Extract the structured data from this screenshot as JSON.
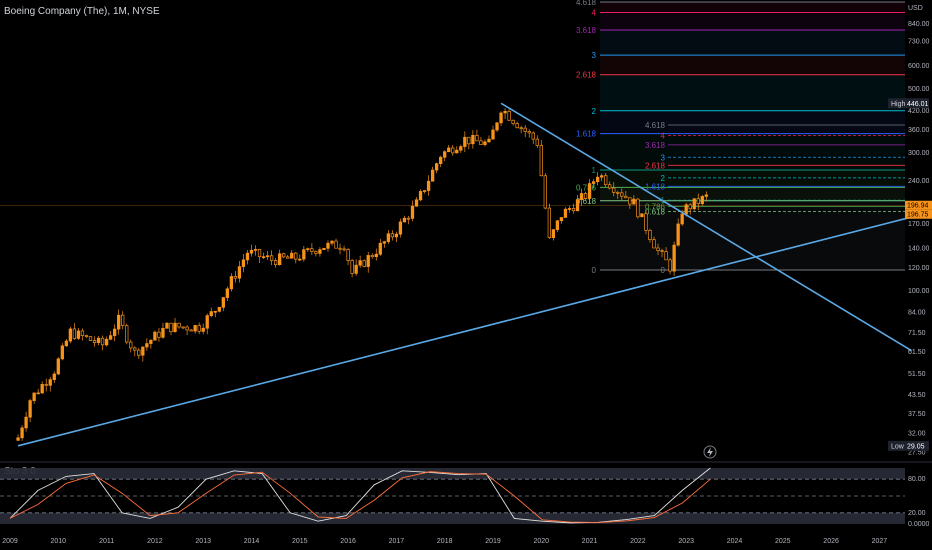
{
  "header": {
    "title": "Boeing Company (The), 1M, NYSE"
  },
  "oscillator": {
    "title": "Sto 3 0"
  },
  "currency": "USD",
  "colors": {
    "candle": "#f7931a",
    "trendline": "#5aa9e6",
    "stoch_k": "#e0e0e0",
    "stoch_d": "#ff6f3c",
    "background": "#000000"
  },
  "chart_data": [
    {
      "type": "candlestick",
      "title": "Boeing Company (The), 1M, NYSE",
      "scale": "log",
      "ylim": [
        27,
        1000
      ],
      "y_ticks": [
        "USD",
        "840.00",
        "730.00",
        "600.00",
        "500.00",
        "420.00",
        "360.00",
        "300.00",
        "240.00",
        "200.00",
        "170.00",
        "140.00",
        "120.00",
        "100.00",
        "84.00",
        "71.50",
        "61.50",
        "51.50",
        "43.50",
        "37.50",
        "32.00",
        "27.50"
      ],
      "x_ticks": [
        "2009",
        "2010",
        "2011",
        "2012",
        "2013",
        "2014",
        "2015",
        "2016",
        "2017",
        "2018",
        "2019",
        "2020",
        "2021",
        "2022",
        "2023",
        "2024",
        "2025",
        "2026",
        "2027"
      ],
      "labels": [
        {
          "text": "High",
          "value": "446.01"
        },
        {
          "text": "Low",
          "value": "29.05"
        }
      ],
      "price_tags": [
        "196.94",
        "196.75"
      ],
      "closes": [
        {
          "date": "2009-03",
          "close": 31
        },
        {
          "date": "2009-06",
          "close": 42
        },
        {
          "date": "2009-12",
          "close": 53
        },
        {
          "date": "2010-04",
          "close": 72
        },
        {
          "date": "2010-12",
          "close": 65
        },
        {
          "date": "2011-04",
          "close": 79
        },
        {
          "date": "2011-08",
          "close": 61
        },
        {
          "date": "2012-04",
          "close": 75
        },
        {
          "date": "2012-12",
          "close": 75
        },
        {
          "date": "2013-04",
          "close": 86
        },
        {
          "date": "2013-12",
          "close": 136
        },
        {
          "date": "2014-06",
          "close": 128
        },
        {
          "date": "2014-12",
          "close": 130
        },
        {
          "date": "2015-06",
          "close": 142
        },
        {
          "date": "2015-12",
          "close": 145
        },
        {
          "date": "2016-02",
          "close": 115
        },
        {
          "date": "2016-12",
          "close": 156
        },
        {
          "date": "2017-06",
          "close": 200
        },
        {
          "date": "2017-12",
          "close": 295
        },
        {
          "date": "2018-06",
          "close": 335
        },
        {
          "date": "2018-12",
          "close": 322
        },
        {
          "date": "2019-03",
          "close": 430
        },
        {
          "date": "2019-12",
          "close": 326
        },
        {
          "date": "2020-03",
          "close": 149
        },
        {
          "date": "2020-06",
          "close": 183
        },
        {
          "date": "2020-12",
          "close": 214
        },
        {
          "date": "2021-03",
          "close": 255
        },
        {
          "date": "2021-12",
          "close": 201
        },
        {
          "date": "2022-06",
          "close": 137
        },
        {
          "date": "2022-09",
          "close": 121
        },
        {
          "date": "2022-12",
          "close": 190
        },
        {
          "date": "2023-06",
          "close": 211
        },
        {
          "date": "2023-07",
          "close": 197
        }
      ],
      "trendlines": [
        {
          "name": "support",
          "from": {
            "date": "2009-03",
            "price": 29.05
          },
          "to": {
            "date": "2027-09",
            "price": 180
          }
        },
        {
          "name": "resistance",
          "from": {
            "date": "2019-03",
            "price": 446
          },
          "to": {
            "date": "2027-09",
            "price": 62
          }
        }
      ],
      "fib_extension_1": {
        "levels": [
          "0",
          "0.618",
          "0.786",
          "1",
          "1.618",
          "2",
          "2.618",
          "3",
          "3.618",
          "4",
          "4.618"
        ],
        "colors": [
          "#787b86",
          "#81c784",
          "#4caf50",
          "#089981",
          "#2962ff",
          "#00bcd4",
          "#f23645",
          "#2196f3",
          "#9c27b0",
          "#e91e63",
          "#787b86"
        ]
      },
      "fib_extension_2": {
        "levels": [
          "0",
          "0.618",
          "0.786",
          "1",
          "1.618",
          "2",
          "2.618",
          "3",
          "3.618",
          "4",
          "4.618"
        ]
      }
    },
    {
      "type": "line",
      "title": "Sto 3 0",
      "ylim": [
        0,
        100
      ],
      "y_ticks": [
        "80.00",
        "20.00",
        "0.0000"
      ],
      "bands": [
        80,
        50,
        20
      ],
      "series": [
        {
          "values": [
            10,
            60,
            85,
            90,
            20,
            10,
            30,
            80,
            95,
            90,
            20,
            5,
            15,
            70,
            95,
            92,
            88,
            90,
            10,
            5,
            2,
            3,
            8,
            15,
            60,
            100
          ]
        }
      ]
    }
  ]
}
